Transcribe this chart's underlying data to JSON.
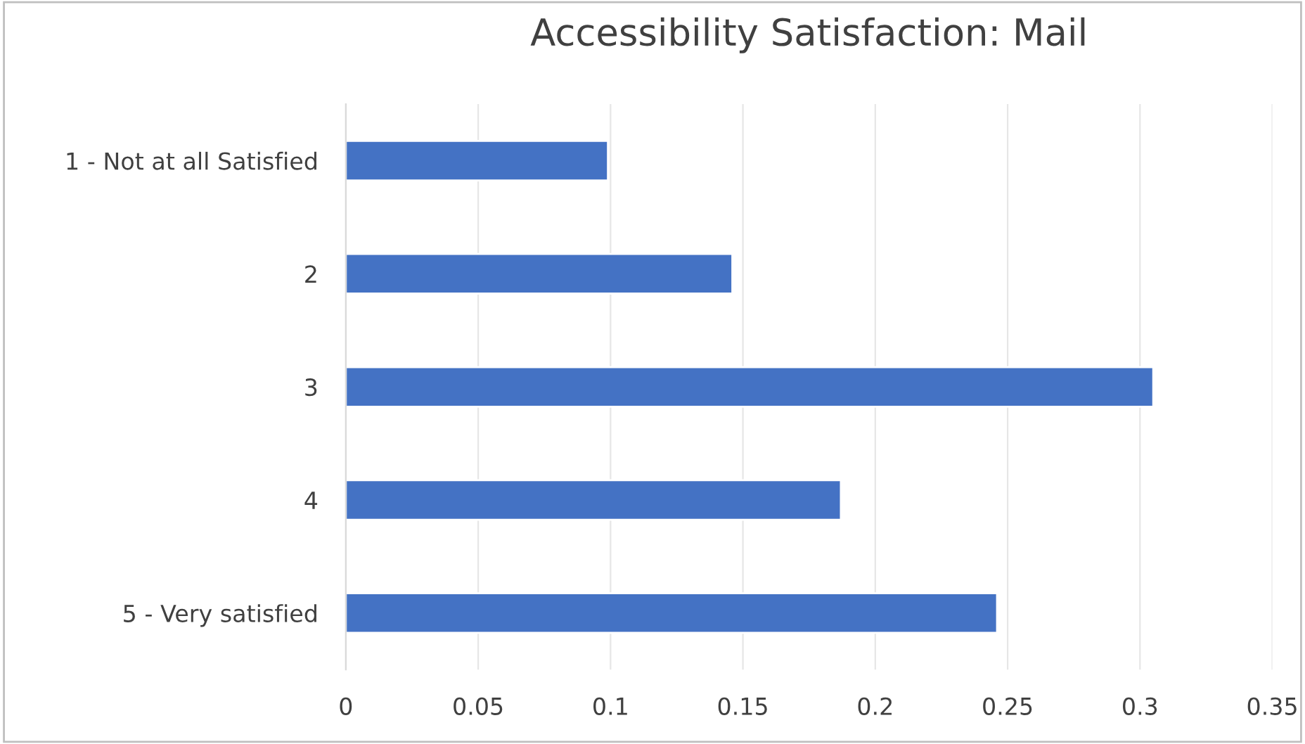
{
  "chart_data": {
    "type": "bar",
    "orientation": "horizontal",
    "title": "Accessibility Satisfaction: Mail",
    "categories": [
      "1 - Not at all Satisfied",
      "2",
      "3",
      "4",
      "5 - Very satisfied"
    ],
    "values": [
      0.099,
      0.146,
      0.305,
      0.187,
      0.246
    ],
    "color": "#4472c4",
    "xlim": [
      0,
      0.35
    ],
    "xticks": [
      0,
      0.05,
      0.1,
      0.15,
      0.2,
      0.25,
      0.3,
      0.35
    ],
    "grid": "x"
  }
}
